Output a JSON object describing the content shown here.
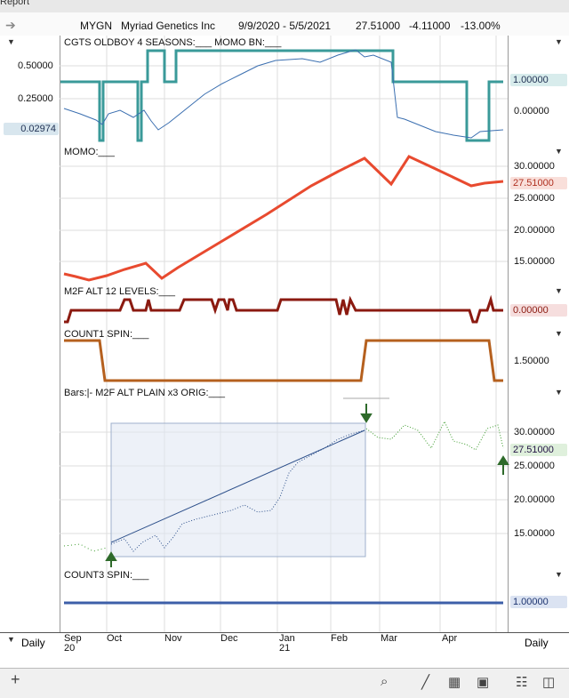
{
  "window": {
    "title": "Report"
  },
  "header": {
    "symbol": "MYGN",
    "company": "Myriad Genetics Inc",
    "range": "9/9/2020 - 5/5/2021",
    "last": "27.51000",
    "change": "-4.11000",
    "pct": "-13.00%"
  },
  "panels": {
    "p1": {
      "label": "CGTS OLDBOY 4 SEASONS:___    MOMO BN:___",
      "ticks_left": [
        "0.50000",
        "0.25000"
      ],
      "badge_left": "0.02974",
      "badge_right": "1.00000",
      "tick_right": "0.00000"
    },
    "p2": {
      "label": "MOMO:___",
      "ticks_right": [
        "30.00000",
        "25.00000",
        "20.00000",
        "15.00000"
      ],
      "badge_right": "27.51000"
    },
    "p3": {
      "label": "M2F ALT 12 LEVELS:___",
      "badge_right": "0.00000"
    },
    "p4": {
      "label": "COUNT1 SPIN:___",
      "tick_right": "1.50000"
    },
    "p5": {
      "label": "Bars:|-    M2F ALT PLAIN x3 ORIG:___",
      "ticks_right": [
        "30.00000",
        "25.00000",
        "20.00000",
        "15.00000"
      ],
      "badge_right": "27.51000"
    },
    "p6": {
      "label": "COUNT3 SPIN:___",
      "badge_right": "1.00000"
    }
  },
  "axis": {
    "left_label": "Daily",
    "right_label": "Daily",
    "months": [
      "Sep",
      "Oct",
      "Nov",
      "Dec",
      "Jan",
      "Feb",
      "Mar",
      "Apr"
    ],
    "years": [
      "20",
      "21"
    ]
  },
  "colors": {
    "teal": "#3a9a99",
    "momo": "#e84a2f",
    "maroon": "#8b1a10",
    "brown": "#b5601e",
    "bars_blue": "#2c4f8a",
    "bars_green": "#3a9a2a",
    "count3": "#3d5fa8"
  },
  "toolbar": {
    "plus": "+",
    "search": "search-icon",
    "line": "line-chart-icon",
    "grid": "grid-icon",
    "panel": "panel-icon",
    "book": "book-icon",
    "layout": "layout-icon"
  }
}
